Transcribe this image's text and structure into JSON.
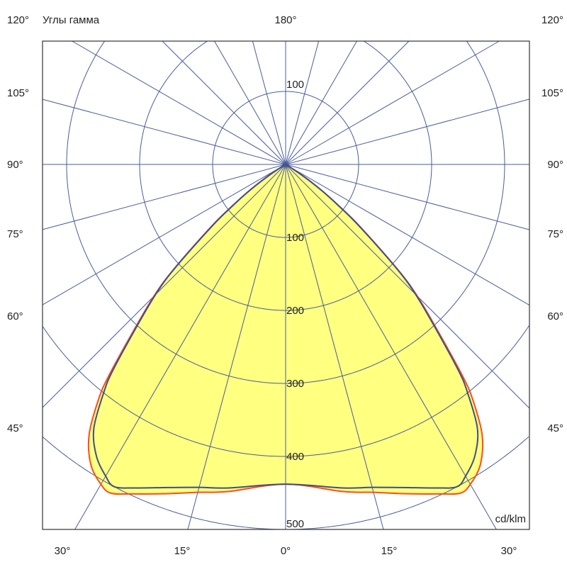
{
  "chart_data": {
    "type": "polar",
    "title": "Углы гамма",
    "unit_label": "cd/klm",
    "radial_range": [
      0,
      500
    ],
    "radial_ticks": [
      100,
      200,
      300,
      400,
      500
    ],
    "radial_tick_labels_down": [
      "100",
      "200",
      "300",
      "400",
      "500"
    ],
    "radial_tick_label_up": "100",
    "angle_step_deg": 15,
    "grid": true,
    "angle_labels": {
      "top": [
        "120°",
        "180°",
        "120°"
      ],
      "left": [
        "105°",
        "90°",
        "75°",
        "60°",
        "45°"
      ],
      "right": [
        "105°",
        "90°",
        "75°",
        "60°",
        "45°"
      ],
      "bottom": [
        "30°",
        "15°",
        "0°",
        "15°",
        "30°"
      ]
    },
    "series": [
      {
        "color": "#ff4a1c",
        "gamma": [
          0,
          10,
          15,
          20,
          25,
          28,
          30,
          33,
          36,
          38.6,
          40,
          42.6,
          45,
          46.8,
          50,
          52,
          54,
          56,
          58,
          60
        ],
        "values": [
          438,
          455,
          465,
          480,
          498,
          510,
          506,
          490,
          458,
          410,
          375,
          305,
          255,
          212,
          135,
          95,
          63,
          35,
          12,
          0
        ]
      },
      {
        "color": "#3e4f8c",
        "gamma": [
          0,
          10,
          15,
          20,
          25,
          28,
          30,
          33,
          36,
          38.6,
          40,
          42.6,
          45,
          46.8,
          50,
          52,
          54,
          56,
          58,
          60
        ],
        "values": [
          438,
          450,
          458,
          471,
          489,
          500,
          493,
          476,
          447,
          399,
          368,
          301,
          252,
          210,
          132,
          93,
          63,
          35,
          12,
          0
        ]
      }
    ],
    "colors": {
      "fill": "#ffff80",
      "grid": "#4a5c9a",
      "frame": "#333333"
    }
  }
}
